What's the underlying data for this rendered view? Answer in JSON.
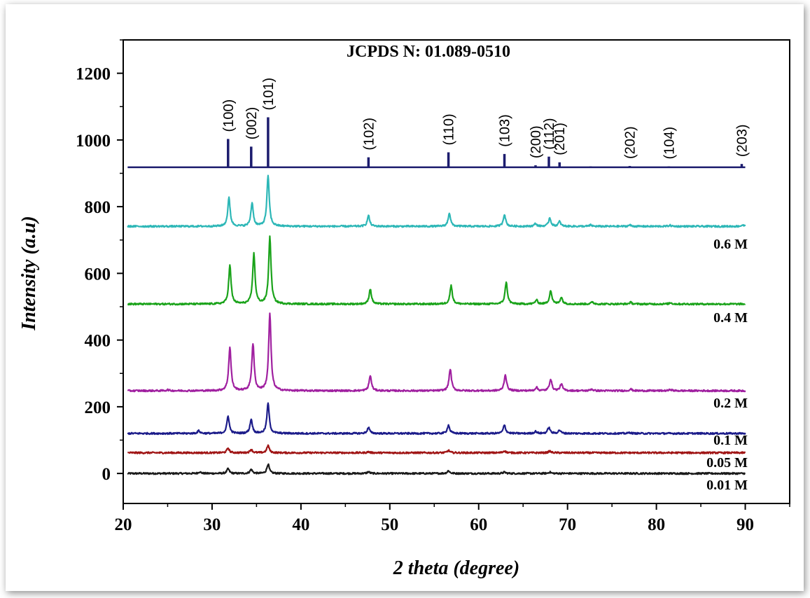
{
  "chart_data": {
    "type": "line",
    "title": "JCPDS N: 01.089-0510",
    "xlabel": "2 theta (degree)",
    "ylabel": "Intensity (a.u)",
    "xlim": [
      20,
      95
    ],
    "ylim": [
      -90,
      1300
    ],
    "x_ticks": [
      20,
      30,
      40,
      50,
      60,
      70,
      80,
      90
    ],
    "y_ticks": [
      0,
      200,
      400,
      600,
      800,
      1000,
      1200
    ],
    "grid": false,
    "series": [
      {
        "name": "0.01 M",
        "color": "#1a1a1a",
        "baseline": 0,
        "peaks": [
          [
            28.6,
            5
          ],
          [
            31.8,
            14
          ],
          [
            34.4,
            12
          ],
          [
            36.3,
            28
          ],
          [
            47.6,
            5
          ],
          [
            56.6,
            8
          ],
          [
            62.9,
            4
          ],
          [
            68.0,
            4
          ]
        ]
      },
      {
        "name": "0.05 M",
        "color": "#a01515",
        "baseline": 62,
        "peaks": [
          [
            31.8,
            14
          ],
          [
            34.4,
            10
          ],
          [
            36.3,
            22
          ],
          [
            47.6,
            3
          ],
          [
            56.6,
            7
          ],
          [
            62.9,
            6
          ],
          [
            68.0,
            5
          ]
        ]
      },
      {
        "name": "0.1 M",
        "color": "#1c1c8a",
        "baseline": 120,
        "peaks": [
          [
            28.5,
            8
          ],
          [
            31.8,
            52
          ],
          [
            34.4,
            42
          ],
          [
            36.3,
            90
          ],
          [
            47.6,
            18
          ],
          [
            56.6,
            25
          ],
          [
            62.9,
            25
          ],
          [
            66.4,
            6
          ],
          [
            67.9,
            18
          ],
          [
            69.1,
            10
          ],
          [
            77.0,
            3
          ]
        ]
      },
      {
        "name": "0.2 M",
        "color": "#a020a0",
        "baseline": 248,
        "peaks": [
          [
            25.0,
            3
          ],
          [
            32.0,
            130
          ],
          [
            34.6,
            140
          ],
          [
            36.5,
            230
          ],
          [
            47.8,
            45
          ],
          [
            56.8,
            65
          ],
          [
            63.0,
            48
          ],
          [
            66.5,
            10
          ],
          [
            68.1,
            35
          ],
          [
            69.3,
            20
          ],
          [
            72.7,
            5
          ],
          [
            77.1,
            5
          ],
          [
            81.6,
            4
          ]
        ]
      },
      {
        "name": "0.4 M",
        "color": "#1aa31a",
        "baseline": 508,
        "peaks": [
          [
            32.0,
            115
          ],
          [
            34.7,
            150
          ],
          [
            36.5,
            200
          ],
          [
            47.8,
            45
          ],
          [
            56.9,
            55
          ],
          [
            63.1,
            65
          ],
          [
            66.5,
            12
          ],
          [
            68.1,
            40
          ],
          [
            69.3,
            20
          ],
          [
            72.8,
            6
          ],
          [
            77.1,
            5
          ],
          [
            81.6,
            4
          ]
        ]
      },
      {
        "name": "0.6 M",
        "color": "#2db7b7",
        "baseline": 741,
        "peaks": [
          [
            31.9,
            85
          ],
          [
            34.5,
            70
          ],
          [
            36.3,
            150
          ],
          [
            47.6,
            32
          ],
          [
            56.7,
            40
          ],
          [
            62.9,
            36
          ],
          [
            66.4,
            8
          ],
          [
            68.0,
            25
          ],
          [
            69.1,
            14
          ],
          [
            72.6,
            4
          ],
          [
            77.0,
            4
          ],
          [
            81.5,
            3
          ],
          [
            89.7,
            4
          ]
        ]
      }
    ],
    "reference": {
      "name": "JCPDS N: 01.089-0510",
      "color": "#1c1c6e",
      "baseline": 918,
      "lines": [
        {
          "x": 31.8,
          "height": 85,
          "hkl": "(100)"
        },
        {
          "x": 34.4,
          "height": 62,
          "hkl": "(002)"
        },
        {
          "x": 36.3,
          "height": 150,
          "hkl": "(101)"
        },
        {
          "x": 47.6,
          "height": 30,
          "hkl": "(102)"
        },
        {
          "x": 56.6,
          "height": 45,
          "hkl": "(110)"
        },
        {
          "x": 62.9,
          "height": 40,
          "hkl": "(103)"
        },
        {
          "x": 66.4,
          "height": 6,
          "hkl": "(200)"
        },
        {
          "x": 67.9,
          "height": 32,
          "hkl": "(112)"
        },
        {
          "x": 69.1,
          "height": 15,
          "hkl": "(201)"
        },
        {
          "x": 72.6,
          "height": 3,
          "hkl": ""
        },
        {
          "x": 77.0,
          "height": 4,
          "hkl": "(202)"
        },
        {
          "x": 81.4,
          "height": 3,
          "hkl": "(104)"
        },
        {
          "x": 89.6,
          "height": 10,
          "hkl": "(203)"
        }
      ]
    }
  }
}
